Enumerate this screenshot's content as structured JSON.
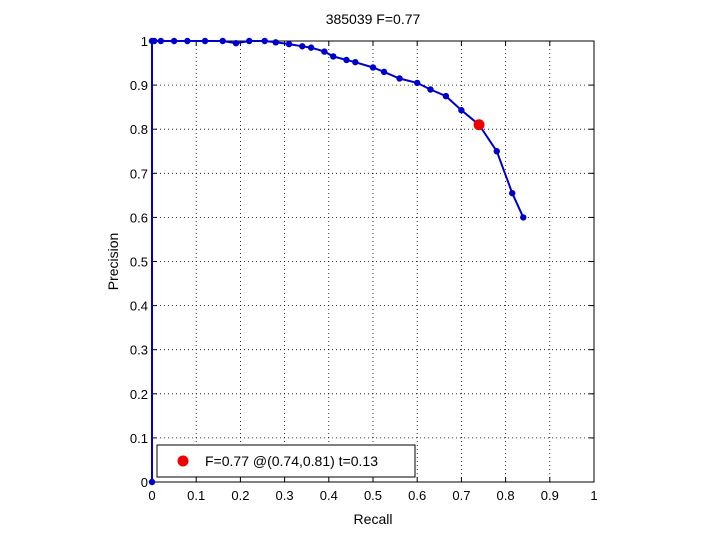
{
  "chart_data": {
    "type": "line",
    "title": "385039 F=0.77",
    "xlabel": "Recall",
    "ylabel": "Precision",
    "xlim": [
      0,
      1
    ],
    "ylim": [
      0,
      1
    ],
    "grid": true,
    "xticks": [
      "0",
      "0.1",
      "0.2",
      "0.3",
      "0.4",
      "0.5",
      "0.6",
      "0.7",
      "0.8",
      "0.9",
      "1"
    ],
    "yticks": [
      "0",
      "0.1",
      "0.2",
      "0.3",
      "0.4",
      "0.5",
      "0.6",
      "0.7",
      "0.8",
      "0.9",
      "1"
    ],
    "series": [
      {
        "color": "#0000cc",
        "x": [
          0,
          0,
          0.005,
          0.02,
          0.05,
          0.08,
          0.12,
          0.16,
          0.19,
          0.22,
          0.255,
          0.28,
          0.31,
          0.34,
          0.36,
          0.39,
          0.41,
          0.44,
          0.46,
          0.5,
          0.525,
          0.56,
          0.6,
          0.63,
          0.665,
          0.7,
          0.74,
          0.78,
          0.815,
          0.84
        ],
        "y": [
          0,
          1,
          1,
          1,
          1,
          1,
          1,
          1,
          0.995,
          1,
          1,
          0.997,
          0.993,
          0.988,
          0.985,
          0.976,
          0.965,
          0.957,
          0.952,
          0.94,
          0.93,
          0.915,
          0.905,
          0.89,
          0.875,
          0.843,
          0.81,
          0.75,
          0.655,
          0.6
        ]
      }
    ],
    "highlight": {
      "x": 0.74,
      "y": 0.81,
      "color": "#ee0000"
    },
    "legend": {
      "location": "bottom-left",
      "text": "F=0.77 @(0.74,0.81) t=0.13"
    }
  }
}
